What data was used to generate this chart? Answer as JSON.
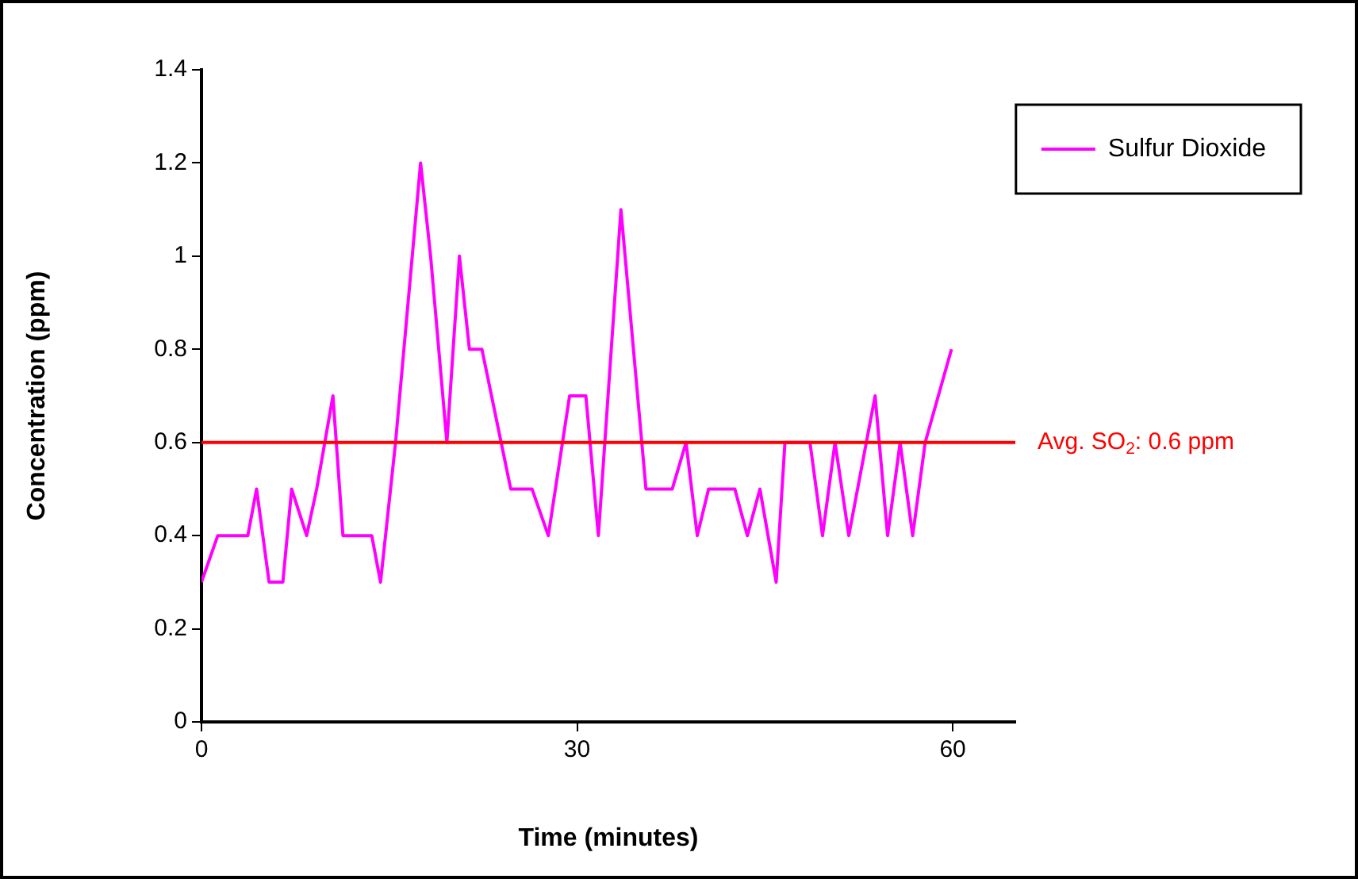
{
  "chart_data": {
    "type": "line",
    "xlabel": "Time (minutes)",
    "ylabel": "Concentration (ppm)",
    "xlim": [
      0,
      65
    ],
    "xticks": [
      0,
      30,
      60
    ],
    "ylim": [
      0,
      1.4
    ],
    "yticks": [
      0,
      0.2,
      0.4,
      0.6,
      0.8,
      1,
      1.2,
      1.4
    ],
    "grid": false,
    "legend": "top right",
    "marker": "none",
    "line_style": "solid",
    "series": [
      {
        "name": "Sulfur Dioxide",
        "color": "#ff00ff",
        "x": [
          0,
          1.3,
          3.7,
          4.4,
          5.4,
          6.5,
          7.2,
          8.4,
          9.2,
          10.5,
          11.3,
          13.6,
          14.3,
          15.5,
          17.5,
          18.3,
          19.6,
          20.6,
          21.4,
          22.4,
          24.7,
          26.4,
          27.7,
          29.4,
          30.7,
          31.7,
          33.5,
          35.5,
          37.6,
          38.7,
          39.6,
          40.5,
          42.6,
          43.6,
          44.6,
          45.9,
          46.6,
          48.6,
          49.6,
          50.6,
          51.7,
          53.8,
          54.8,
          55.8,
          56.8,
          57.8,
          59.9
        ],
        "values": [
          0.3,
          0.4,
          0.4,
          0.5,
          0.3,
          0.3,
          0.5,
          0.4,
          0.5,
          0.7,
          0.4,
          0.4,
          0.3,
          0.6,
          1.2,
          1.0,
          0.6,
          1.0,
          0.8,
          0.8,
          0.5,
          0.5,
          0.4,
          0.7,
          0.7,
          0.4,
          1.1,
          0.5,
          0.5,
          0.6,
          0.4,
          0.5,
          0.5,
          0.4,
          0.5,
          0.3,
          0.6,
          0.6,
          0.4,
          0.6,
          0.4,
          0.7,
          0.4,
          0.6,
          0.4,
          0.6,
          0.8
        ]
      }
    ],
    "ref_lines": [
      {
        "axis": "y",
        "value": 0.6,
        "label": "Avg. SO$_{2}$: 0.6 ppm",
        "color": "#ff0000"
      }
    ]
  }
}
